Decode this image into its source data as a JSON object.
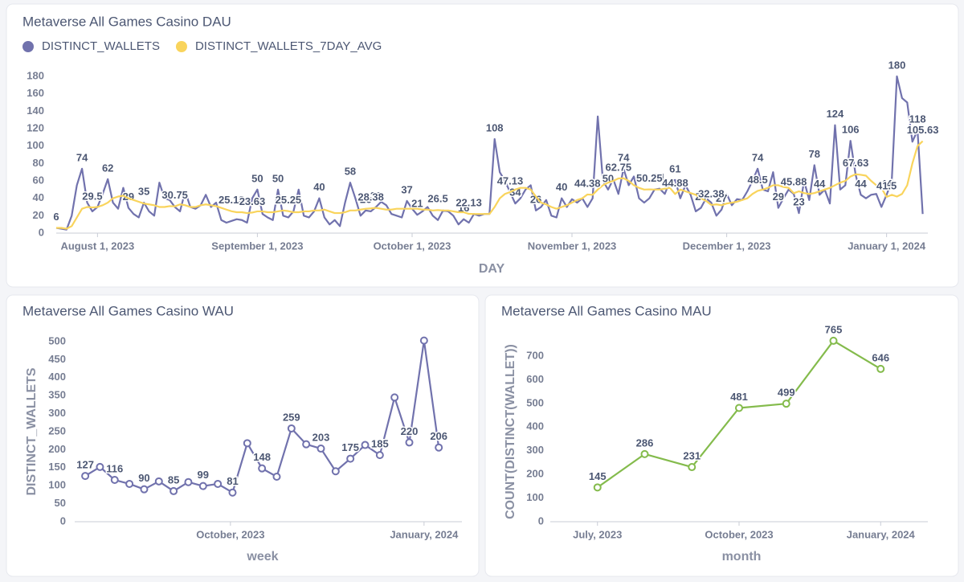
{
  "chart_data": [
    {
      "type": "line",
      "title": "Metaverse All Games Casino DAU",
      "x_label": "DAY",
      "legend": "top-left",
      "x": [
        "2023-07-24",
        "2023-07-25",
        "2023-07-26",
        "2023-07-27",
        "2023-07-28",
        "2023-07-29",
        "2023-07-30",
        "2023-07-31",
        "2023-08-01",
        "2023-08-02",
        "2023-08-03",
        "2023-08-04",
        "2023-08-05",
        "2023-08-06",
        "2023-08-07",
        "2023-08-08",
        "2023-08-09",
        "2023-08-10",
        "2023-08-11",
        "2023-08-12",
        "2023-08-13",
        "2023-08-14",
        "2023-08-15",
        "2023-08-16",
        "2023-08-17",
        "2023-08-18",
        "2023-08-19",
        "2023-08-20",
        "2023-08-21",
        "2023-08-22",
        "2023-08-23",
        "2023-08-24",
        "2023-08-25",
        "2023-08-26",
        "2023-08-27",
        "2023-08-28",
        "2023-08-29",
        "2023-08-30",
        "2023-08-31",
        "2023-09-01",
        "2023-09-02",
        "2023-09-03",
        "2023-09-04",
        "2023-09-05",
        "2023-09-06",
        "2023-09-07",
        "2023-09-08",
        "2023-09-09",
        "2023-09-10",
        "2023-09-11",
        "2023-09-12",
        "2023-09-13",
        "2023-09-14",
        "2023-09-15",
        "2023-09-16",
        "2023-09-17",
        "2023-09-18",
        "2023-09-19",
        "2023-09-20",
        "2023-09-21",
        "2023-09-22",
        "2023-09-23",
        "2023-09-24",
        "2023-09-25",
        "2023-09-26",
        "2023-09-27",
        "2023-09-28",
        "2023-09-29",
        "2023-09-30",
        "2023-10-01",
        "2023-10-02",
        "2023-10-03",
        "2023-10-04",
        "2023-10-05",
        "2023-10-06",
        "2023-10-07",
        "2023-10-08",
        "2023-10-09",
        "2023-10-10",
        "2023-10-11",
        "2023-10-12",
        "2023-10-13",
        "2023-10-14",
        "2023-10-15",
        "2023-10-16",
        "2023-10-17",
        "2023-10-18",
        "2023-10-19",
        "2023-10-20",
        "2023-10-21",
        "2023-10-22",
        "2023-10-23",
        "2023-10-24",
        "2023-10-25",
        "2023-10-26",
        "2023-10-27",
        "2023-10-28",
        "2023-10-29",
        "2023-10-30",
        "2023-10-31",
        "2023-11-01",
        "2023-11-02",
        "2023-11-03",
        "2023-11-04",
        "2023-11-05",
        "2023-11-06",
        "2023-11-07",
        "2023-11-08",
        "2023-11-09",
        "2023-11-10",
        "2023-11-11",
        "2023-11-12",
        "2023-11-13",
        "2023-11-14",
        "2023-11-15",
        "2023-11-16",
        "2023-11-17",
        "2023-11-18",
        "2023-11-19",
        "2023-11-20",
        "2023-11-21",
        "2023-11-22",
        "2023-11-23",
        "2023-11-24",
        "2023-11-25",
        "2023-11-26",
        "2023-11-27",
        "2023-11-28",
        "2023-11-29",
        "2023-11-30",
        "2023-12-01",
        "2023-12-02",
        "2023-12-03",
        "2023-12-04",
        "2023-12-05",
        "2023-12-06",
        "2023-12-07",
        "2023-12-08",
        "2023-12-09",
        "2023-12-10",
        "2023-12-11",
        "2023-12-12",
        "2023-12-13",
        "2023-12-14",
        "2023-12-15",
        "2023-12-16",
        "2023-12-17",
        "2023-12-18",
        "2023-12-19",
        "2023-12-20",
        "2023-12-21",
        "2023-12-22",
        "2023-12-23",
        "2023-12-24",
        "2023-12-25",
        "2023-12-26",
        "2023-12-27",
        "2023-12-28",
        "2023-12-29",
        "2023-12-30",
        "2023-12-31",
        "2024-01-01",
        "2024-01-02",
        "2024-01-03",
        "2024-01-04",
        "2024-01-05",
        "2024-01-06",
        "2024-01-07",
        "2024-01-08"
      ],
      "series": [
        {
          "name": "DISTINCT_WALLETS",
          "color": "#7172ad",
          "values": [
            6,
            5,
            4,
            20,
            55,
            74,
            35,
            25,
            30,
            45,
            62,
            35,
            28,
            52,
            29,
            22,
            18,
            35,
            25,
            20,
            58,
            40,
            38,
            30,
            25,
            48,
            30,
            28,
            32,
            44,
            30,
            35,
            15,
            12,
            14,
            16,
            15,
            12,
            40,
            50,
            22,
            18,
            15,
            50,
            20,
            18,
            25,
            50,
            20,
            18,
            25,
            40,
            18,
            10,
            15,
            8,
            35,
            58,
            40,
            20,
            26,
            25,
            30,
            36,
            32,
            22,
            20,
            18,
            37,
            28,
            21,
            25,
            30,
            20,
            15,
            26,
            25,
            20,
            10,
            16,
            12,
            22,
            20,
            22,
            22,
            108,
            70,
            60,
            47,
            34,
            40,
            50,
            55,
            26,
            30,
            38,
            20,
            18,
            40,
            30,
            39,
            35,
            40,
            30,
            40,
            134,
            60,
            50,
            62,
            45,
            74,
            55,
            65,
            40,
            35,
            40,
            50,
            51,
            45,
            60,
            61,
            40,
            55,
            44,
            25,
            29,
            40,
            35,
            20,
            27,
            45,
            32,
            39,
            38,
            48,
            60,
            74,
            50,
            48,
            70,
            29,
            40,
            50,
            45,
            23,
            60,
            38,
            78,
            44,
            50,
            34,
            124,
            50,
            55,
            106,
            67,
            44,
            40,
            44,
            45,
            30,
            44,
            60,
            180,
            155,
            150,
            105,
            118,
            22
          ],
          "value_labels": [
            "6",
            null,
            null,
            null,
            null,
            "74",
            null,
            null,
            null,
            null,
            "62",
            null,
            null,
            null,
            "29",
            null,
            null,
            "35",
            null,
            null,
            null,
            null,
            null,
            null,
            null,
            null,
            null,
            null,
            null,
            null,
            null,
            null,
            null,
            null,
            null,
            null,
            null,
            null,
            null,
            "50",
            null,
            null,
            null,
            "50",
            null,
            null,
            null,
            null,
            null,
            null,
            null,
            "40",
            null,
            null,
            null,
            null,
            null,
            "58",
            null,
            null,
            "26",
            null,
            "30",
            null,
            null,
            null,
            null,
            null,
            "37",
            null,
            "21",
            null,
            null,
            null,
            null,
            null,
            null,
            null,
            null,
            "16",
            null,
            null,
            null,
            null,
            null,
            "108",
            null,
            null,
            null,
            "34",
            null,
            null,
            null,
            "26",
            null,
            null,
            null,
            null,
            "40",
            null,
            null,
            null,
            null,
            null,
            null,
            null,
            null,
            "50",
            null,
            null,
            "74",
            null,
            null,
            null,
            null,
            null,
            null,
            "51",
            null,
            null,
            "61",
            null,
            null,
            null,
            null,
            "29",
            null,
            null,
            null,
            "27",
            null,
            null,
            null,
            null,
            null,
            null,
            "74",
            null,
            null,
            null,
            "29",
            null,
            null,
            null,
            "23",
            null,
            null,
            "78",
            "44",
            null,
            null,
            "124",
            null,
            null,
            "106",
            null,
            "44",
            null,
            null,
            null,
            null,
            "44",
            null,
            "180",
            null,
            null,
            null,
            "118",
            null
          ]
        },
        {
          "name": "DISTINCT_WALLETS_7DAY_AVG",
          "color": "#f9d45c",
          "values": [
            6,
            6,
            5,
            8,
            18,
            28,
            30,
            29.5,
            30,
            32,
            35,
            40,
            42,
            43,
            40,
            38,
            36,
            34,
            33,
            32,
            30,
            30,
            31,
            30.75,
            33,
            32,
            30,
            30,
            32,
            33,
            32,
            31,
            29,
            27,
            25.13,
            24,
            24,
            23,
            23.63,
            25,
            25,
            24,
            24,
            25,
            26,
            25.25,
            24,
            24,
            25,
            25,
            26,
            26,
            27,
            25,
            23,
            23,
            24,
            26,
            26,
            27,
            28,
            28.38,
            29,
            28,
            27,
            27,
            28,
            28,
            28,
            28,
            28,
            27,
            27,
            26,
            26.5,
            26,
            26,
            25,
            24,
            24,
            22.13,
            22,
            22,
            22,
            22,
            30,
            40,
            45,
            47.13,
            50,
            52,
            52,
            50,
            42,
            35,
            33,
            30,
            28,
            30,
            32,
            35,
            38,
            40,
            44.38,
            44,
            50,
            55,
            58,
            60,
            62.75,
            63,
            60,
            55,
            52,
            50,
            50.25,
            50,
            50,
            51,
            52,
            44.88,
            50,
            48,
            46,
            44,
            40,
            37,
            32.38,
            33,
            32,
            34,
            35,
            36,
            38,
            40,
            45,
            48.5,
            50,
            52,
            55,
            55,
            53,
            52,
            45.88,
            48,
            46,
            45,
            46,
            48,
            50,
            52,
            55,
            58,
            60,
            65,
            67.63,
            67,
            66,
            60,
            55,
            52,
            41.5,
            44,
            42,
            45,
            55,
            80,
            100,
            105.63
          ],
          "value_labels": [
            null,
            null,
            null,
            null,
            null,
            null,
            null,
            "29.5",
            null,
            null,
            null,
            null,
            null,
            null,
            null,
            null,
            null,
            null,
            null,
            null,
            null,
            null,
            null,
            "30.75",
            null,
            null,
            null,
            null,
            null,
            null,
            null,
            null,
            null,
            null,
            "25.13",
            null,
            null,
            null,
            "23.63",
            null,
            null,
            null,
            null,
            null,
            null,
            "25.25",
            null,
            null,
            null,
            null,
            null,
            null,
            null,
            null,
            null,
            null,
            null,
            null,
            null,
            null,
            null,
            "28.38",
            null,
            null,
            null,
            null,
            null,
            null,
            null,
            null,
            null,
            null,
            null,
            null,
            "26.5",
            null,
            null,
            null,
            null,
            null,
            "22.13",
            null,
            null,
            null,
            null,
            null,
            null,
            null,
            "47.13",
            null,
            null,
            null,
            null,
            null,
            null,
            null,
            null,
            null,
            null,
            null,
            null,
            null,
            null,
            "44.38",
            null,
            null,
            null,
            null,
            null,
            "62.75",
            null,
            null,
            null,
            null,
            null,
            "50.25",
            null,
            null,
            null,
            null,
            "44.88",
            null,
            null,
            null,
            null,
            null,
            null,
            "32.38",
            null,
            null,
            null,
            null,
            null,
            null,
            null,
            null,
            "48.5",
            null,
            null,
            null,
            null,
            null,
            null,
            "45.88",
            null,
            null,
            null,
            null,
            null,
            null,
            null,
            null,
            null,
            null,
            null,
            "67.63",
            null,
            null,
            null,
            null,
            null,
            "41.5",
            null,
            null,
            null,
            null,
            null,
            null,
            "105.63"
          ]
        }
      ],
      "xlim": [
        "2023-07-24",
        "2024-01-09"
      ],
      "xticks": [
        {
          "value": "2023-08-01",
          "label": "August 1, 2023"
        },
        {
          "value": "2023-09-01",
          "label": "September 1, 2023"
        },
        {
          "value": "2023-10-01",
          "label": "October 1, 2023"
        },
        {
          "value": "2023-11-01",
          "label": "November 1, 2023"
        },
        {
          "value": "2023-12-01",
          "label": "December 1, 2023"
        },
        {
          "value": "2024-01-01",
          "label": "January 1, 2024"
        }
      ],
      "ylim": [
        0,
        180
      ],
      "yticks": [
        0,
        20,
        40,
        60,
        80,
        100,
        120,
        140,
        160,
        180
      ]
    },
    {
      "type": "line",
      "title": "Metaverse All Games Casino WAU",
      "x_label": "week",
      "y_label": "DISTINCT_WALLETS",
      "color": "#7172ad",
      "markers": true,
      "x": [
        "2023-07-24",
        "2023-07-31",
        "2023-08-07",
        "2023-08-14",
        "2023-08-21",
        "2023-08-28",
        "2023-09-04",
        "2023-09-11",
        "2023-09-18",
        "2023-09-25",
        "2023-10-02",
        "2023-10-09",
        "2023-10-16",
        "2023-10-23",
        "2023-10-30",
        "2023-11-06",
        "2023-11-13",
        "2023-11-20",
        "2023-11-27",
        "2023-12-04",
        "2023-12-11",
        "2023-12-18",
        "2023-12-25",
        "2024-01-01",
        "2024-01-08"
      ],
      "values": [
        127,
        152,
        116,
        105,
        90,
        112,
        85,
        110,
        99,
        105,
        81,
        218,
        148,
        125,
        259,
        215,
        203,
        140,
        175,
        213,
        185,
        345,
        220,
        503,
        206
      ],
      "value_labels": [
        "127",
        null,
        "116",
        null,
        "90",
        null,
        "85",
        null,
        "99",
        null,
        "81",
        null,
        "148",
        null,
        "259",
        null,
        "203",
        null,
        "175",
        null,
        "185",
        null,
        "220",
        null,
        "206"
      ],
      "xlim": [
        "2023-07-19",
        "2024-01-19"
      ],
      "xticks": [
        {
          "value": "2023-10-01",
          "label": "October, 2023"
        },
        {
          "value": "2024-01-01",
          "label": "January, 2024"
        }
      ],
      "ylim": [
        0,
        520
      ],
      "yticks": [
        0,
        50,
        100,
        150,
        200,
        250,
        300,
        350,
        400,
        450,
        500
      ]
    },
    {
      "type": "line",
      "title": "Metaverse All Games Casino MAU",
      "x_label": "month",
      "y_label": "COUNT(DISTINCT(WALLET))",
      "color": "#84bb4c",
      "markers": true,
      "x": [
        "2023-07",
        "2023-08",
        "2023-09",
        "2023-10",
        "2023-11",
        "2023-12",
        "2024-01"
      ],
      "values": [
        145,
        286,
        231,
        481,
        499,
        765,
        646
      ],
      "value_labels": [
        "145",
        "286",
        "231",
        "481",
        "499",
        "765",
        "646"
      ],
      "xlim": [
        "2023-06",
        "2024-02"
      ],
      "xticks": [
        {
          "value": "2023-07",
          "label": "July, 2023"
        },
        {
          "value": "2023-10",
          "label": "October, 2023"
        },
        {
          "value": "2024-01",
          "label": "January, 2024"
        }
      ],
      "ylim": [
        0,
        780
      ],
      "yticks": [
        0,
        100,
        200,
        300,
        400,
        500,
        600,
        700
      ]
    }
  ]
}
